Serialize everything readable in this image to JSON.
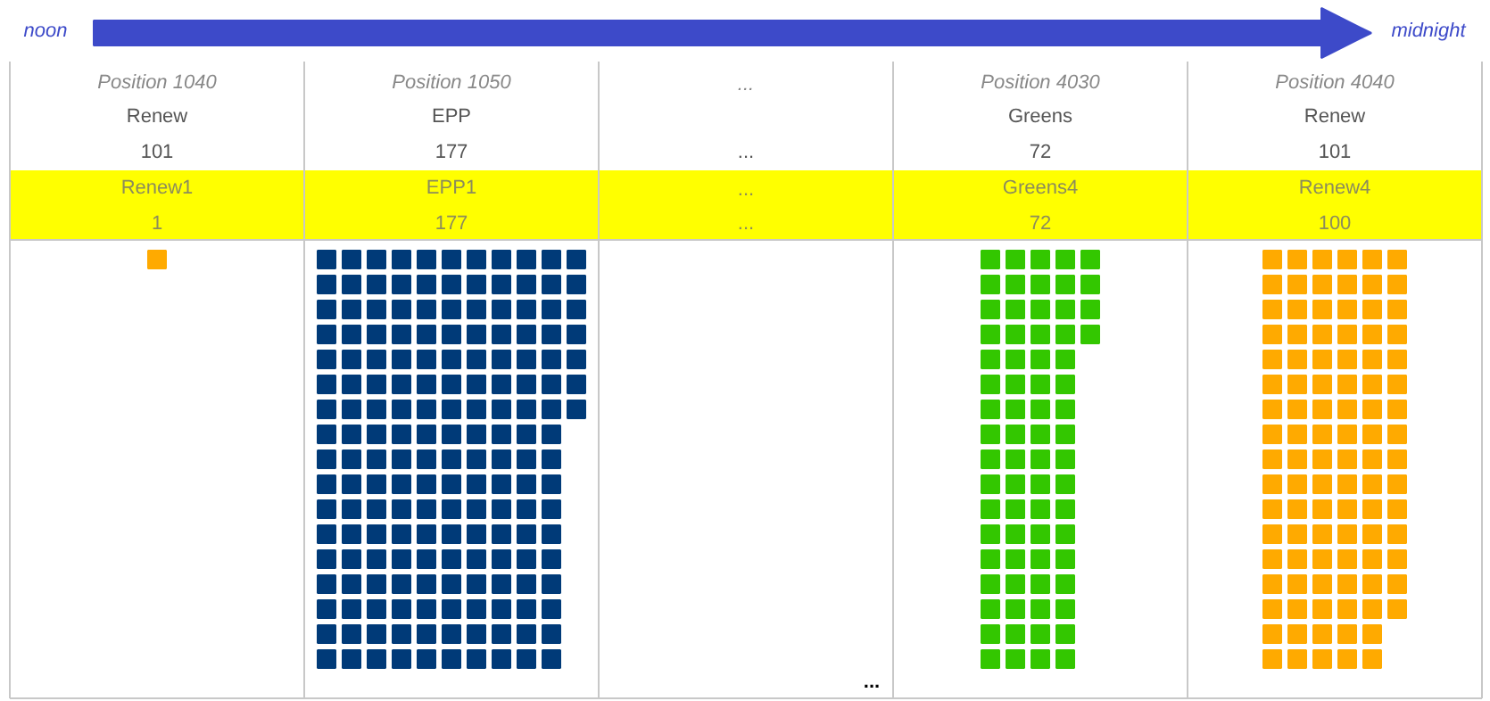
{
  "chart_data": {
    "type": "other",
    "categories": [
      "Renew1",
      "EPP1",
      "...",
      "Greens4",
      "Renew4"
    ],
    "values": [
      1,
      177,
      null,
      72,
      100
    ],
    "colors": [
      "#ffaa00",
      "#003a78",
      "#ffffff",
      "#33c700",
      "#ffaa00"
    ],
    "value_labels": [
      "1",
      "177",
      "...",
      "72",
      "100"
    ],
    "annotations": [
      "noon",
      "midnight",
      "Position 1040",
      "Renew",
      "101",
      "Position 1050",
      "EPP",
      "177",
      "...",
      null,
      "...",
      "Position 4030",
      "Greens",
      "72",
      "Position 4040",
      "Renew",
      "101",
      "..."
    ]
  }
}
